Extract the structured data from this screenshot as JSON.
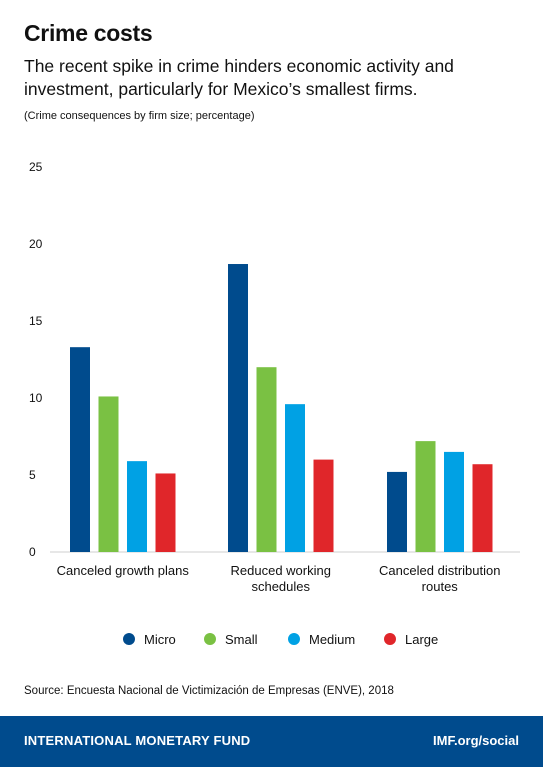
{
  "header": {
    "title": "Crime costs",
    "subtitle": "The recent spike in crime hinders economic activity and investment, particularly for Mexico’s smallest firms.",
    "note": "(Crime consequences by firm size; percentage)"
  },
  "chart_data": {
    "type": "bar",
    "categories": [
      [
        "Canceled growth plans"
      ],
      [
        "Reduced working",
        "schedules"
      ],
      [
        "Canceled distribution",
        "routes"
      ]
    ],
    "series": [
      {
        "name": "Micro",
        "color": "#004b8d",
        "values": [
          13.3,
          18.7,
          5.2
        ]
      },
      {
        "name": "Small",
        "color": "#7ac143",
        "values": [
          10.1,
          12.0,
          7.2
        ]
      },
      {
        "name": "Medium",
        "color": "#00a1e4",
        "values": [
          5.9,
          9.6,
          6.5
        ]
      },
      {
        "name": "Large",
        "color": "#e0262a",
        "values": [
          5.1,
          6.0,
          5.7
        ]
      }
    ],
    "yticks": [
      0,
      5,
      10,
      15,
      20,
      25
    ],
    "ylim": [
      0,
      25
    ],
    "legend_position": "bottom",
    "grid": false
  },
  "source": "Source: Encuesta Nacional de Victimización de Empresas (ENVE), 2018",
  "footer": {
    "org": "INTERNATIONAL MONETARY FUND",
    "link": "IMF.org/social"
  }
}
